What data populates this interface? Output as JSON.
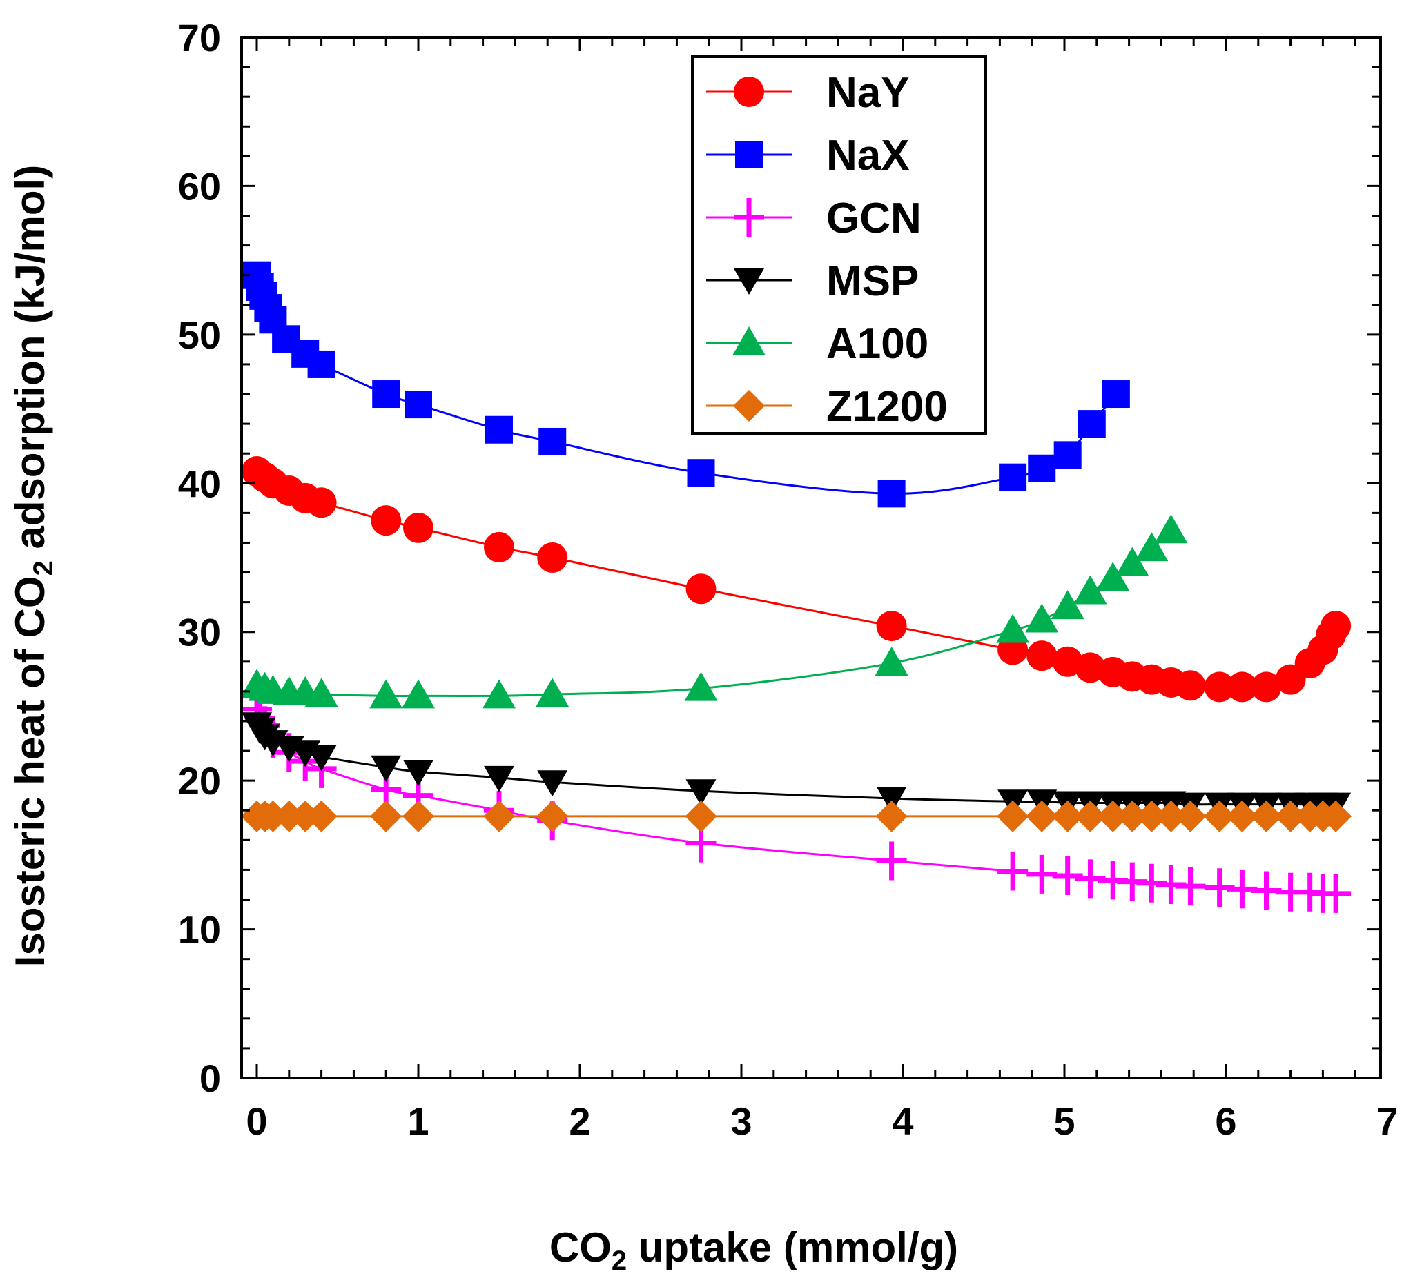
{
  "chart_data": {
    "type": "line",
    "title": "",
    "xlabel": {
      "pre": "CO",
      "sub": "2",
      "post": " uptake (mmol/g)"
    },
    "ylabel": {
      "pre": "Isosteric heat of CO",
      "sub": "2",
      "post": " adsorption (kJ/mol)"
    },
    "xlim": [
      0,
      7
    ],
    "ylim": [
      0,
      70
    ],
    "xticks": [
      "0",
      "1",
      "2",
      "3",
      "4",
      "5",
      "6",
      "7"
    ],
    "yticks": [
      "0",
      "10",
      "20",
      "30",
      "40",
      "50",
      "60",
      "70"
    ],
    "grid": false,
    "legend": "top-center",
    "series": [
      {
        "name": "NaY",
        "color": "#ff0000",
        "marker": "circle",
        "x": [
          0.0,
          0.05,
          0.1,
          0.2,
          0.3,
          0.4,
          0.8,
          1.0,
          1.5,
          1.83,
          2.75,
          3.93,
          4.68,
          4.86,
          5.02,
          5.16,
          5.3,
          5.42,
          5.54,
          5.66,
          5.78,
          5.96,
          6.1,
          6.25,
          6.4,
          6.52,
          6.6,
          6.65,
          6.68
        ],
        "y": [
          40.8,
          40.4,
          40.0,
          39.5,
          39.0,
          38.7,
          37.5,
          37.0,
          35.7,
          35.0,
          32.9,
          30.4,
          28.8,
          28.4,
          28.0,
          27.6,
          27.3,
          27.0,
          26.8,
          26.6,
          26.4,
          26.3,
          26.3,
          26.3,
          26.8,
          27.9,
          28.8,
          29.8,
          30.4
        ]
      },
      {
        "name": "NaX",
        "color": "#0000ff",
        "marker": "square",
        "x": [
          0.0,
          0.02,
          0.04,
          0.07,
          0.1,
          0.18,
          0.3,
          0.4,
          0.8,
          1.0,
          1.5,
          1.83,
          2.75,
          3.93,
          4.68,
          4.86,
          5.02,
          5.17,
          5.32
        ],
        "y": [
          54.0,
          53.2,
          52.6,
          51.8,
          51.0,
          49.7,
          48.7,
          48.0,
          46.0,
          45.3,
          43.6,
          42.8,
          40.7,
          39.3,
          40.4,
          41.0,
          41.9,
          44.0,
          46.0
        ]
      },
      {
        "name": "GCN",
        "color": "#ff00ff",
        "marker": "plus",
        "x": [
          0.0,
          0.02,
          0.05,
          0.1,
          0.2,
          0.3,
          0.4,
          0.8,
          1.0,
          1.5,
          1.83,
          2.75,
          3.93,
          4.68,
          4.86,
          5.02,
          5.16,
          5.3,
          5.42,
          5.54,
          5.66,
          5.78,
          5.96,
          6.1,
          6.25,
          6.4,
          6.52,
          6.6,
          6.68
        ],
        "y": [
          24.8,
          24.2,
          23.7,
          22.8,
          21.9,
          21.3,
          20.8,
          19.4,
          19.0,
          18.0,
          17.3,
          15.8,
          14.6,
          13.9,
          13.7,
          13.6,
          13.4,
          13.3,
          13.2,
          13.1,
          13.0,
          12.9,
          12.8,
          12.7,
          12.6,
          12.5,
          12.5,
          12.4,
          12.4
        ]
      },
      {
        "name": "MSP",
        "color": "#000000",
        "marker": "triangle-down",
        "x": [
          0.0,
          0.02,
          0.05,
          0.1,
          0.2,
          0.3,
          0.4,
          0.8,
          1.0,
          1.5,
          1.83,
          2.75,
          3.93,
          4.68,
          4.86,
          5.02,
          5.16,
          5.3,
          5.42,
          5.54,
          5.66,
          5.78,
          5.96,
          6.1,
          6.25,
          6.4,
          6.52,
          6.6,
          6.68
        ],
        "y": [
          23.8,
          23.4,
          23.0,
          22.6,
          22.2,
          21.9,
          21.6,
          20.9,
          20.6,
          20.2,
          19.9,
          19.3,
          18.8,
          18.6,
          18.6,
          18.5,
          18.5,
          18.5,
          18.5,
          18.5,
          18.5,
          18.4,
          18.4,
          18.4,
          18.4,
          18.4,
          18.4,
          18.4,
          18.4
        ]
      },
      {
        "name": "A100",
        "color": "#00b050",
        "marker": "triangle-up",
        "x": [
          0.0,
          0.05,
          0.1,
          0.2,
          0.3,
          0.4,
          0.8,
          1.0,
          1.5,
          1.83,
          2.75,
          3.93,
          4.68,
          4.86,
          5.02,
          5.16,
          5.3,
          5.42,
          5.54,
          5.66
        ],
        "y": [
          26.4,
          26.2,
          26.0,
          25.9,
          25.9,
          25.8,
          25.7,
          25.7,
          25.7,
          25.8,
          26.2,
          27.9,
          30.1,
          30.8,
          31.7,
          32.7,
          33.6,
          34.6,
          35.6,
          36.8
        ]
      },
      {
        "name": "Z1200",
        "color": "#e36c0a",
        "marker": "diamond",
        "x": [
          0.0,
          0.05,
          0.1,
          0.2,
          0.3,
          0.4,
          0.8,
          1.0,
          1.5,
          1.83,
          2.75,
          3.93,
          4.68,
          4.86,
          5.02,
          5.16,
          5.3,
          5.42,
          5.54,
          5.66,
          5.78,
          5.96,
          6.1,
          6.25,
          6.4,
          6.52,
          6.6,
          6.68
        ],
        "y": [
          17.6,
          17.6,
          17.6,
          17.6,
          17.6,
          17.6,
          17.6,
          17.6,
          17.6,
          17.6,
          17.6,
          17.6,
          17.6,
          17.6,
          17.6,
          17.6,
          17.6,
          17.6,
          17.6,
          17.6,
          17.6,
          17.6,
          17.6,
          17.6,
          17.6,
          17.6,
          17.6,
          17.6
        ]
      }
    ]
  }
}
